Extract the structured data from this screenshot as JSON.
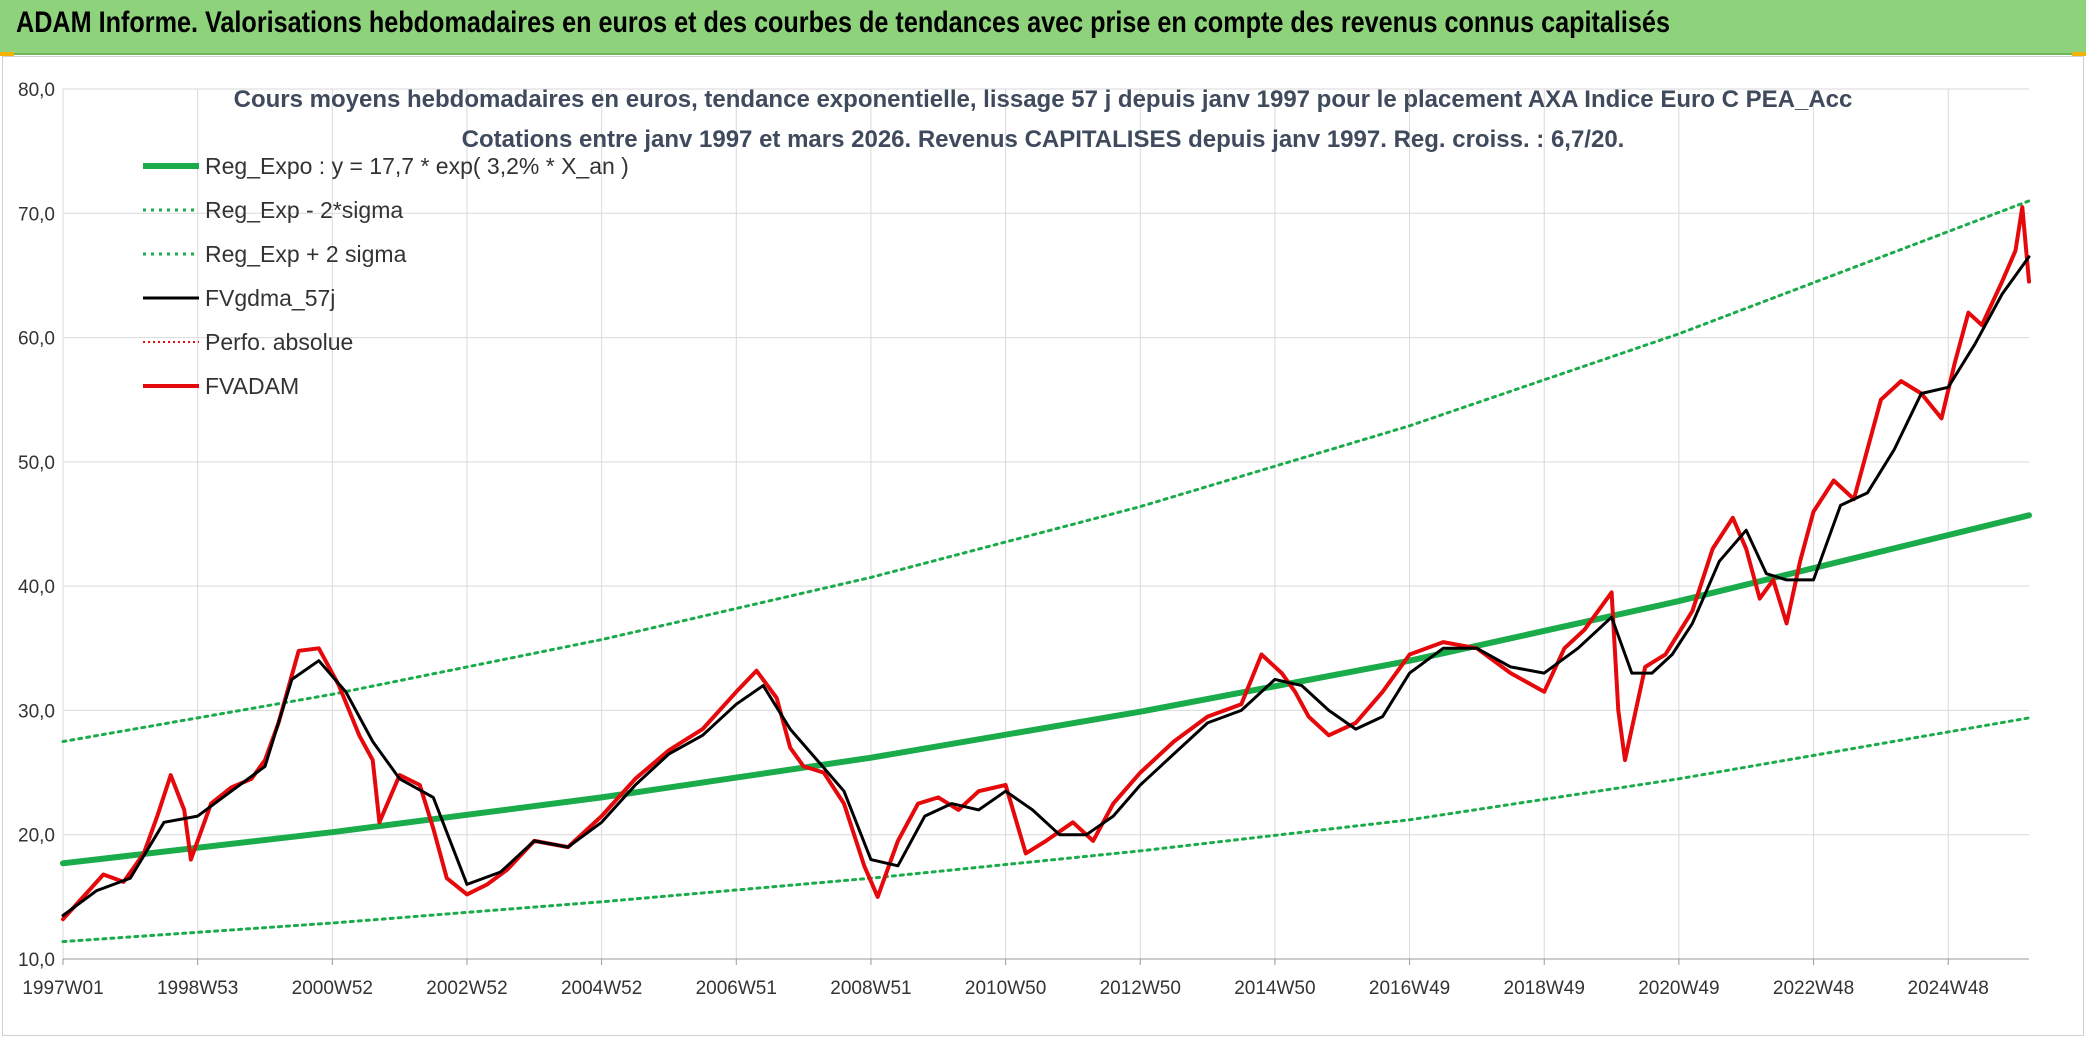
{
  "header": {
    "title": "ADAM Informe. Valorisations hebdomadaires en euros et des courbes de tendances avec prise en compte des revenus connus capitalisés"
  },
  "colors": {
    "header_bg": "#8fd27c",
    "reg": "#1aab4a",
    "fvgdma": "#000000",
    "fvadam": "#e5090c",
    "perfo": "#e5090c",
    "grid": "#d9d9d9"
  },
  "chart_data": {
    "type": "line",
    "title_line1": "Cours moyens hebdomadaires en euros, tendance exponentielle, lissage 57 j depuis janv 1997 pour le placement AXA Indice Euro C PEA_Acc",
    "title_line2": "Cotations entre janv 1997 et mars 2026. Revenus CAPITALISES depuis janv 1997. Reg. croiss. : 6,7/20.",
    "xlabel": "",
    "ylabel": "",
    "x_range": [
      1997.0,
      2026.2
    ],
    "ylim": [
      10,
      80
    ],
    "y_ticks": [
      "10,0",
      "20,0",
      "30,0",
      "40,0",
      "50,0",
      "60,0",
      "70,0",
      "80,0"
    ],
    "x_ticks": [
      {
        "label": "1997W01",
        "year": 1997.0
      },
      {
        "label": "1998W53",
        "year": 1999.0
      },
      {
        "label": "2000W52",
        "year": 2001.0
      },
      {
        "label": "2002W52",
        "year": 2003.0
      },
      {
        "label": "2004W52",
        "year": 2005.0
      },
      {
        "label": "2006W51",
        "year": 2007.0
      },
      {
        "label": "2008W51",
        "year": 2009.0
      },
      {
        "label": "2010W50",
        "year": 2011.0
      },
      {
        "label": "2012W50",
        "year": 2013.0
      },
      {
        "label": "2014W50",
        "year": 2015.0
      },
      {
        "label": "2016W49",
        "year": 2017.0
      },
      {
        "label": "2018W49",
        "year": 2019.0
      },
      {
        "label": "2020W49",
        "year": 2021.0
      },
      {
        "label": "2022W48",
        "year": 2023.0
      },
      {
        "label": "2024W48",
        "year": 2025.0
      }
    ],
    "grid": true,
    "legend_position": "top-left",
    "legend": [
      {
        "key": "reg",
        "label": "Reg_Expo : y = 17,7 * exp( 3,2% *  X_an )"
      },
      {
        "key": "reg_minus",
        "label": "Reg_Exp - 2*sigma"
      },
      {
        "key": "reg_plus",
        "label": "Reg_Exp + 2 sigma"
      },
      {
        "key": "fvgdma",
        "label": "FVgdma_57j"
      },
      {
        "key": "perfo",
        "label": "Perfo. absolue"
      },
      {
        "key": "fvadam",
        "label": "FVADAM"
      }
    ],
    "series": [
      {
        "name": "Reg_Expo : y = 17,7 * exp( 3,2% *  X_an )",
        "key": "reg",
        "x": [
          1997.0,
          2001.0,
          2005.0,
          2009.0,
          2013.0,
          2017.0,
          2021.0,
          2026.2
        ],
        "y": [
          17.7,
          20.2,
          23.0,
          26.2,
          29.9,
          34.0,
          38.8,
          45.7
        ]
      },
      {
        "name": "Reg_Exp - 2*sigma",
        "key": "reg_minus",
        "x": [
          1997.0,
          2001.0,
          2005.0,
          2009.0,
          2013.0,
          2017.0,
          2021.0,
          2026.2
        ],
        "y": [
          11.4,
          12.9,
          14.6,
          16.5,
          18.7,
          21.2,
          24.5,
          29.4
        ]
      },
      {
        "name": "Reg_Exp + 2 sigma",
        "key": "reg_plus",
        "x": [
          1997.0,
          2001.0,
          2005.0,
          2009.0,
          2013.0,
          2017.0,
          2021.0,
          2026.2
        ],
        "y": [
          27.5,
          31.3,
          35.7,
          40.7,
          46.4,
          52.9,
          60.3,
          71.0
        ]
      },
      {
        "name": "FVADAM",
        "key": "fvadam",
        "x": [
          1997.0,
          1997.3,
          1997.6,
          1997.9,
          1998.2,
          1998.4,
          1998.6,
          1998.8,
          1998.9,
          1999.2,
          1999.5,
          1999.8,
          2000.0,
          2000.2,
          2000.5,
          2000.8,
          2001.1,
          2001.4,
          2001.6,
          2001.7,
          2002.0,
          2002.3,
          2002.5,
          2002.7,
          2003.0,
          2003.3,
          2003.6,
          2004.0,
          2004.5,
          2005.0,
          2005.5,
          2006.0,
          2006.5,
          2007.0,
          2007.3,
          2007.6,
          2007.8,
          2008.0,
          2008.3,
          2008.6,
          2008.9,
          2009.1,
          2009.4,
          2009.7,
          2010.0,
          2010.3,
          2010.6,
          2011.0,
          2011.3,
          2011.6,
          2012.0,
          2012.3,
          2012.6,
          2013.0,
          2013.5,
          2014.0,
          2014.5,
          2014.8,
          2015.1,
          2015.3,
          2015.5,
          2015.8,
          2016.2,
          2016.6,
          2017.0,
          2017.5,
          2018.0,
          2018.5,
          2019.0,
          2019.3,
          2019.6,
          2020.0,
          2020.1,
          2020.2,
          2020.5,
          2020.8,
          2021.2,
          2021.5,
          2021.8,
          2022.0,
          2022.2,
          2022.4,
          2022.6,
          2022.8,
          2023.0,
          2023.3,
          2023.6,
          2024.0,
          2024.3,
          2024.6,
          2024.9,
          2025.1,
          2025.3,
          2025.5,
          2025.8,
          2026.0,
          2026.1,
          2026.2
        ],
        "y": [
          13.2,
          15.0,
          16.8,
          16.2,
          18.5,
          21.5,
          24.8,
          22.0,
          18.0,
          22.5,
          23.8,
          24.5,
          26.0,
          29.0,
          34.8,
          35.0,
          32.0,
          28.0,
          26.0,
          21.0,
          24.8,
          24.0,
          20.5,
          16.5,
          15.2,
          16.0,
          17.2,
          19.5,
          19.0,
          21.5,
          24.5,
          26.8,
          28.5,
          31.5,
          33.2,
          31.0,
          27.0,
          25.5,
          25.0,
          22.5,
          17.5,
          15.0,
          19.5,
          22.5,
          23.0,
          22.0,
          23.5,
          24.0,
          18.5,
          19.5,
          21.0,
          19.5,
          22.5,
          25.0,
          27.5,
          29.5,
          30.5,
          34.5,
          33.0,
          31.5,
          29.5,
          28.0,
          29.0,
          31.5,
          34.5,
          35.5,
          35.0,
          33.0,
          31.5,
          35.0,
          36.5,
          39.5,
          30.0,
          26.0,
          33.5,
          34.5,
          38.0,
          43.0,
          45.5,
          43.0,
          39.0,
          40.5,
          37.0,
          42.0,
          46.0,
          48.5,
          47.0,
          55.0,
          56.5,
          55.5,
          53.5,
          58.0,
          62.0,
          61.0,
          64.5,
          67.0,
          70.5,
          64.5
        ]
      },
      {
        "name": "FVgdma_57j",
        "key": "fvgdma",
        "x": [
          1997.0,
          1997.5,
          1998.0,
          1998.5,
          1999.0,
          1999.5,
          2000.0,
          2000.4,
          2000.8,
          2001.2,
          2001.6,
          2002.0,
          2002.5,
          2003.0,
          2003.5,
          2004.0,
          2004.5,
          2005.0,
          2005.5,
          2006.0,
          2006.5,
          2007.0,
          2007.4,
          2007.8,
          2008.2,
          2008.6,
          2009.0,
          2009.4,
          2009.8,
          2010.2,
          2010.6,
          2011.0,
          2011.4,
          2011.8,
          2012.2,
          2012.6,
          2013.0,
          2013.5,
          2014.0,
          2014.5,
          2015.0,
          2015.4,
          2015.8,
          2016.2,
          2016.6,
          2017.0,
          2017.5,
          2018.0,
          2018.5,
          2019.0,
          2019.5,
          2020.0,
          2020.3,
          2020.6,
          2020.9,
          2021.2,
          2021.6,
          2022.0,
          2022.3,
          2022.6,
          2023.0,
          2023.4,
          2023.8,
          2024.2,
          2024.6,
          2025.0,
          2025.4,
          2025.8,
          2026.2
        ],
        "y": [
          13.5,
          15.5,
          16.5,
          21.0,
          21.5,
          23.5,
          25.5,
          32.5,
          34.0,
          31.5,
          27.5,
          24.5,
          23.0,
          16.0,
          17.0,
          19.5,
          19.0,
          21.0,
          24.0,
          26.5,
          28.0,
          30.5,
          32.0,
          28.5,
          26.0,
          23.5,
          18.0,
          17.5,
          21.5,
          22.5,
          22.0,
          23.5,
          22.0,
          20.0,
          20.0,
          21.5,
          24.0,
          26.5,
          29.0,
          30.0,
          32.5,
          32.0,
          30.0,
          28.5,
          29.5,
          33.0,
          35.0,
          35.0,
          33.5,
          33.0,
          35.0,
          37.5,
          33.0,
          33.0,
          34.5,
          37.0,
          42.0,
          44.5,
          41.0,
          40.5,
          40.5,
          46.5,
          47.5,
          51.0,
          55.5,
          56.0,
          59.5,
          63.5,
          66.5
        ]
      }
    ]
  }
}
